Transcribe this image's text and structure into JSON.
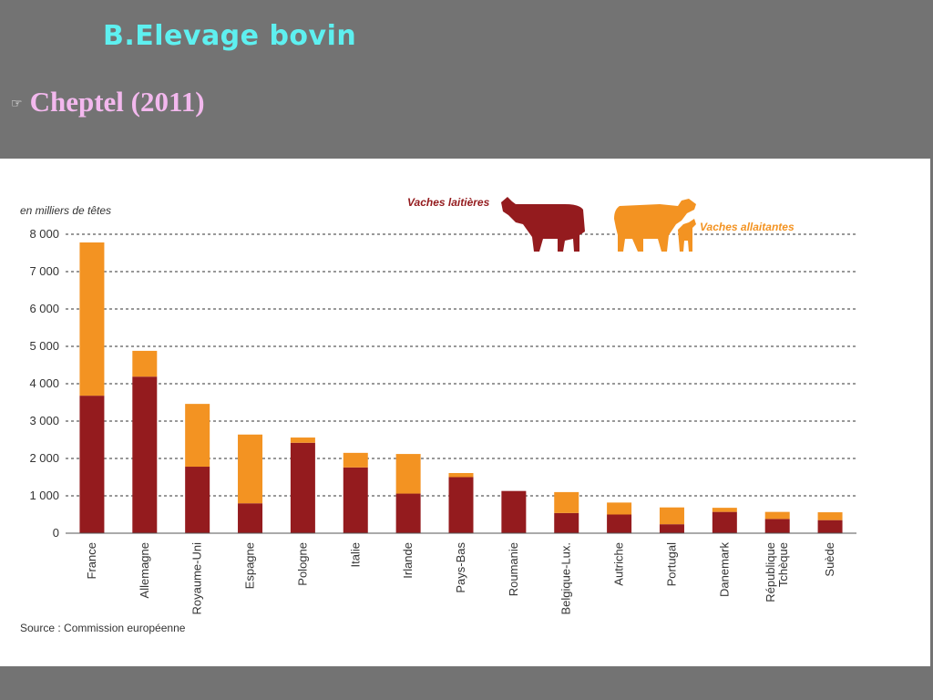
{
  "slide": {
    "title": "B.Elevage bovin",
    "bullet_icon": "pointing-hand-icon",
    "bullet_text": "Cheptel (2011)"
  },
  "colors": {
    "background": "#737373",
    "title": "#5ef0f0",
    "bullet": "#f3b8ee",
    "dairy": "#941b1e",
    "suckler": "#f39322"
  },
  "chart_data": {
    "type": "bar",
    "stacked": true,
    "unit_label": "en milliers de têtes",
    "source": "Source : Commission européenne",
    "ylim": [
      0,
      8000
    ],
    "yticks": [
      "0",
      "1 000",
      "2 000",
      "3 000",
      "4 000",
      "5 000",
      "6 000",
      "7 000",
      "8 000"
    ],
    "ytick_values": [
      0,
      1000,
      2000,
      3000,
      4000,
      5000,
      6000,
      7000,
      8000
    ],
    "grid": true,
    "legend_position": "top-right",
    "categories": [
      "France",
      "Allemagne",
      "Royaume-Uni",
      "Espagne",
      "Pologne",
      "Italie",
      "Irlande",
      "Pays-Bas",
      "Roumanie",
      "Belgique-Lux.",
      "Autriche",
      "Portugal",
      "Danemark",
      "République Tchèque",
      "Suède"
    ],
    "category_lines": [
      [
        "France"
      ],
      [
        "Allemagne"
      ],
      [
        "Royaume-Uni"
      ],
      [
        "Espagne"
      ],
      [
        "Pologne"
      ],
      [
        "Italie"
      ],
      [
        "Irlande"
      ],
      [
        "Pays-Bas"
      ],
      [
        "Roumanie"
      ],
      [
        "Belgique-Lux."
      ],
      [
        "Autriche"
      ],
      [
        "Portugal"
      ],
      [
        "Danemark"
      ],
      [
        "République",
        "Tchèque"
      ],
      [
        "Suède"
      ]
    ],
    "series": [
      {
        "name": "Vaches laitières",
        "color": "#941b1e",
        "values": [
          3680,
          4190,
          1780,
          800,
          2420,
          1760,
          1060,
          1500,
          1130,
          540,
          500,
          240,
          570,
          380,
          350
        ]
      },
      {
        "name": "Vaches allaitantes",
        "color": "#f39322",
        "values": [
          4100,
          690,
          1680,
          1840,
          140,
          390,
          1060,
          110,
          0,
          560,
          320,
          450,
          110,
          190,
          210
        ]
      }
    ]
  }
}
